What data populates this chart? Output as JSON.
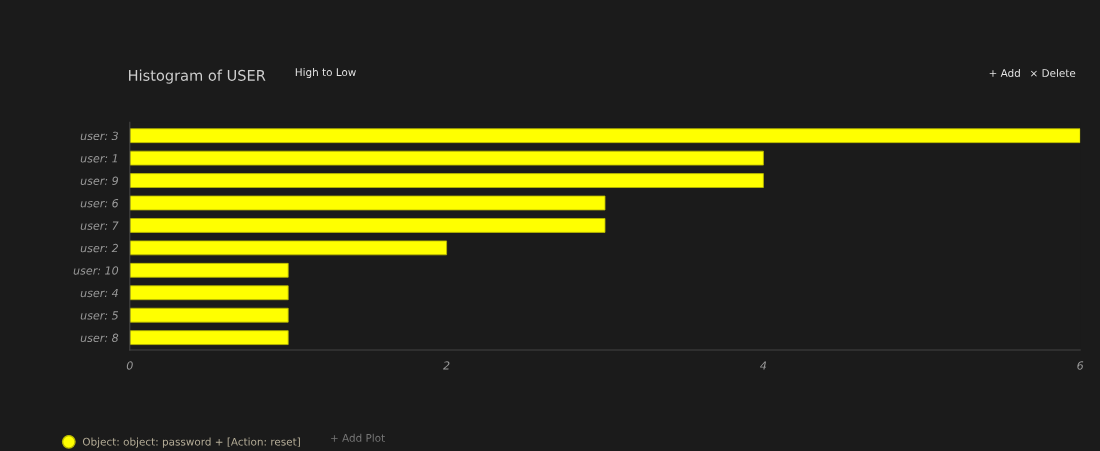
{
  "chart_data": {
    "type": "bar",
    "orientation": "horizontal",
    "title": "Histogram of USER",
    "categories": [
      "user: 3",
      "user: 1",
      "user: 9",
      "user: 6",
      "user: 7",
      "user: 2",
      "user: 10",
      "user: 4",
      "user: 5",
      "user: 8"
    ],
    "series": [
      {
        "name": "Object: object: password + [Action: reset]",
        "color": "#ffff00",
        "values": [
          6,
          4,
          4,
          3,
          3,
          2,
          1,
          1,
          1,
          1
        ]
      }
    ],
    "xlim": [
      0,
      6
    ],
    "xticks": [
      0,
      2,
      4,
      6
    ],
    "grid": false,
    "legend": "bottom left",
    "annotations": [
      "High to Low",
      "+ Add",
      "× Delete",
      "+ Add Plot"
    ]
  }
}
